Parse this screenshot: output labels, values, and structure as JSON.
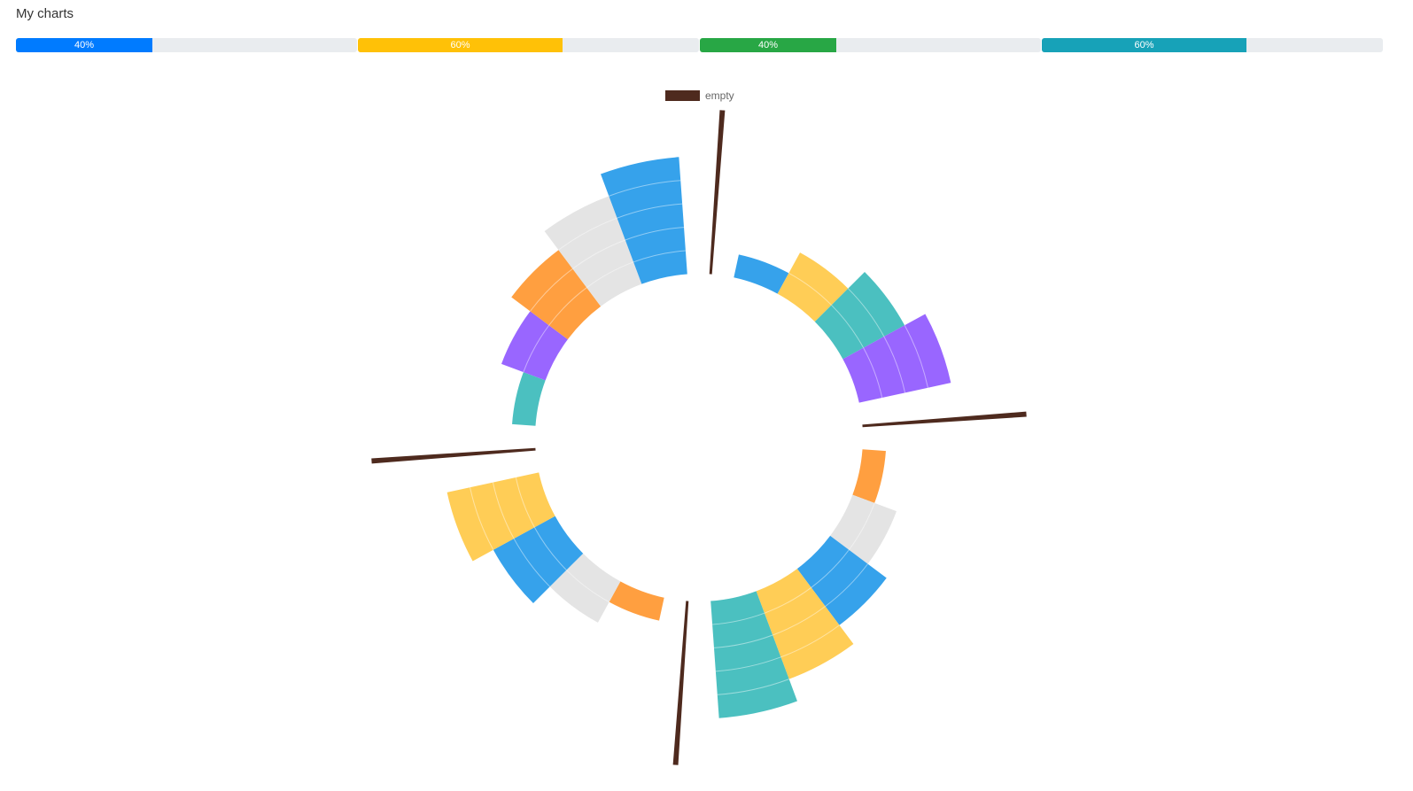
{
  "page": {
    "title": "My charts"
  },
  "progress_bars": [
    {
      "label": "40%",
      "value": 0.4,
      "color": "#007bff"
    },
    {
      "label": "60%",
      "value": 0.6,
      "color": "#ffc107"
    },
    {
      "label": "40%",
      "value": 0.4,
      "color": "#28a745"
    },
    {
      "label": "60%",
      "value": 0.6,
      "color": "#17a2b8"
    }
  ],
  "chart_data": {
    "type": "polar-bar",
    "legend": {
      "label": "empty",
      "color": "#4e2a1e",
      "position": "top"
    },
    "radial_range": [
      0,
      5
    ],
    "palette": {
      "blue": "#36a2eb",
      "yellow": "#ffcd56",
      "teal": "#4bc0c0",
      "purple": "#9966ff",
      "orange": "#ff9f40",
      "gray": "#e4e4e4",
      "brown": "#4e2a1e"
    },
    "sectors": [
      {
        "value": 1,
        "color": "#36a2eb"
      },
      {
        "value": 2,
        "color": "#ffcd56"
      },
      {
        "value": 3,
        "color": "#4bc0c0"
      },
      {
        "value": 4,
        "color": "#9966ff"
      },
      {
        "value": 7,
        "color": "#4e2a1e"
      },
      {
        "value": 1,
        "color": "#ff9f40"
      },
      {
        "value": 2,
        "color": "#e4e4e4"
      },
      {
        "value": 3,
        "color": "#36a2eb"
      },
      {
        "value": 4,
        "color": "#ffcd56"
      },
      {
        "value": 5,
        "color": "#4bc0c0"
      },
      {
        "value": 7,
        "color": "#4e2a1e"
      },
      {
        "value": 1,
        "color": "#ff9f40"
      },
      {
        "value": 2,
        "color": "#e4e4e4"
      },
      {
        "value": 3,
        "color": "#36a2eb"
      },
      {
        "value": 4,
        "color": "#ffcd56"
      },
      {
        "value": 7,
        "color": "#4e2a1e"
      },
      {
        "value": 1,
        "color": "#4bc0c0"
      },
      {
        "value": 2,
        "color": "#9966ff"
      },
      {
        "value": 3,
        "color": "#ff9f40"
      },
      {
        "value": 4,
        "color": "#e4e4e4"
      },
      {
        "value": 5,
        "color": "#36a2eb"
      },
      {
        "value": 7,
        "color": "#4e2a1e"
      }
    ]
  }
}
